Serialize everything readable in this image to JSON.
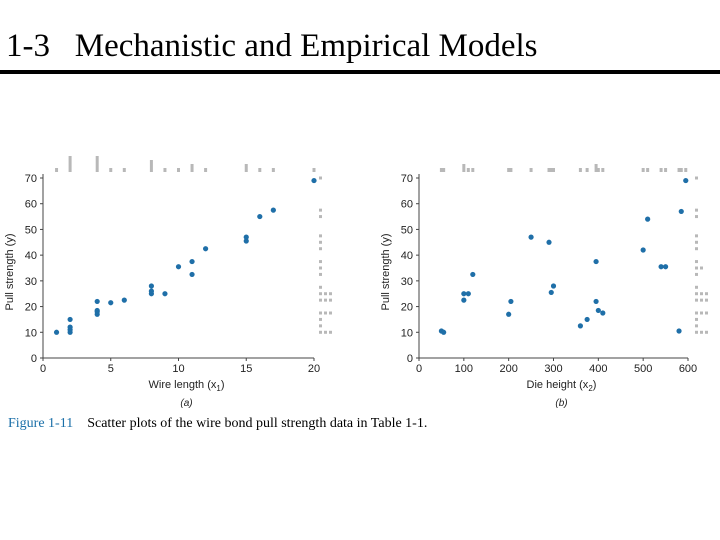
{
  "slide": {
    "title": "1-3   Mechanistic and Empirical Models"
  },
  "caption": {
    "label": "Figure 1-11",
    "text": "Scatter plots of the wire bond pull strength data in Table 1-1."
  },
  "colors": {
    "points": "#1f6fa8",
    "marginal": "#b8b8b8",
    "text": "#222222",
    "figure_label": "#1a6fa8"
  },
  "chart_data": [
    {
      "type": "scatter",
      "panel_label": "(a)",
      "xlabel": "Wire length (x",
      "xlabel_sub": "1",
      "ylabel": "Pull strength (y)",
      "xlim": [
        0,
        20
      ],
      "ylim": [
        0,
        70
      ],
      "xticks": [
        0,
        5,
        10,
        15,
        20
      ],
      "yticks": [
        0,
        10,
        20,
        30,
        40,
        50,
        60,
        70
      ],
      "points": [
        [
          1,
          10
        ],
        [
          2,
          10
        ],
        [
          2,
          11
        ],
        [
          2,
          12
        ],
        [
          2,
          15
        ],
        [
          4,
          17
        ],
        [
          4,
          18
        ],
        [
          4,
          18.5
        ],
        [
          4,
          22
        ],
        [
          5,
          21.5
        ],
        [
          6,
          22.5
        ],
        [
          8,
          25
        ],
        [
          8,
          26
        ],
        [
          8,
          28
        ],
        [
          9,
          25
        ],
        [
          10,
          35.5
        ],
        [
          11,
          32.5
        ],
        [
          11,
          37.5
        ],
        [
          12,
          42.5
        ],
        [
          15,
          45.5
        ],
        [
          15,
          47
        ],
        [
          16,
          55
        ],
        [
          17,
          57.5
        ],
        [
          20,
          69
        ]
      ]
    },
    {
      "type": "scatter",
      "panel_label": "(b)",
      "xlabel": "Die height (x",
      "xlabel_sub": "2",
      "ylabel": "Pull strength (y)",
      "xlim": [
        0,
        600
      ],
      "ylim": [
        0,
        70
      ],
      "xticks": [
        0,
        100,
        200,
        300,
        400,
        500,
        600
      ],
      "yticks": [
        0,
        10,
        20,
        30,
        40,
        50,
        60,
        70
      ],
      "points": [
        [
          50,
          10.5
        ],
        [
          55,
          10
        ],
        [
          100,
          22.5
        ],
        [
          100,
          25
        ],
        [
          110,
          25
        ],
        [
          120,
          32.5
        ],
        [
          200,
          17
        ],
        [
          205,
          22
        ],
        [
          250,
          47
        ],
        [
          290,
          45
        ],
        [
          295,
          25.5
        ],
        [
          300,
          28
        ],
        [
          360,
          12.5
        ],
        [
          375,
          15
        ],
        [
          395,
          37.5
        ],
        [
          395,
          22
        ],
        [
          400,
          18.5
        ],
        [
          410,
          17.5
        ],
        [
          500,
          42
        ],
        [
          510,
          54
        ],
        [
          540,
          35.5
        ],
        [
          550,
          35.5
        ],
        [
          580,
          10.5
        ],
        [
          585,
          57
        ],
        [
          595,
          69
        ]
      ]
    }
  ]
}
